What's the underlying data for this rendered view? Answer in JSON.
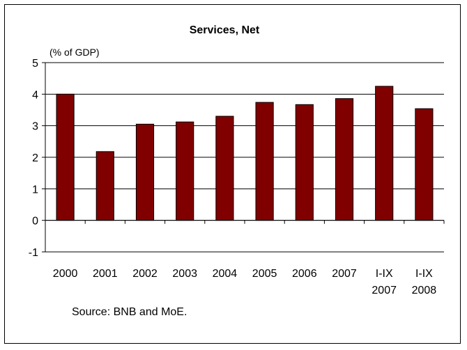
{
  "chart_data": {
    "type": "bar",
    "title": "Services, Net",
    "unit_label": "(% of GDP)",
    "source": "Source: BNB and MoE.",
    "categories": [
      [
        "2000"
      ],
      [
        "2001"
      ],
      [
        "2002"
      ],
      [
        "2003"
      ],
      [
        "2004"
      ],
      [
        "2005"
      ],
      [
        "2006"
      ],
      [
        "2007"
      ],
      [
        "I-IX",
        "2007"
      ],
      [
        "I-IX",
        "2008"
      ]
    ],
    "values": [
      4.0,
      2.18,
      3.05,
      3.12,
      3.3,
      3.74,
      3.67,
      3.86,
      4.25,
      3.54
    ],
    "ylim": [
      -1,
      5
    ],
    "yticks": [
      -1,
      0,
      1,
      2,
      3,
      4,
      5
    ],
    "grid": true,
    "bar_color": "#800000"
  }
}
